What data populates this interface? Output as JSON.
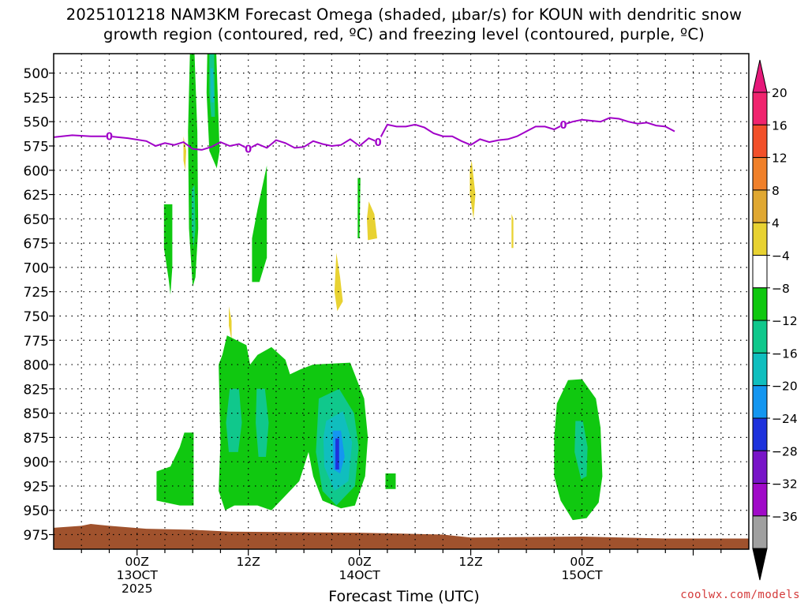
{
  "chart_data": {
    "type": "heatmap",
    "title_line1": "2025101218 NAM3KM Forecast Omega (shaded, μbar/s) for KOUN with dendritic snow",
    "title_line2": "growth region (contoured, red, ºC) and freezing level (contoured, purple, ºC)",
    "xlabel": "Forecast Time (UTC)",
    "x_range_hours": [
      -9,
      66
    ],
    "x_ticks": [
      {
        "hour": 0,
        "lines": [
          "00Z",
          "13OCT",
          "2025"
        ]
      },
      {
        "hour": 12,
        "lines": [
          "12Z"
        ]
      },
      {
        "hour": 24,
        "lines": [
          "00Z",
          "14OCT"
        ]
      },
      {
        "hour": 36,
        "lines": [
          "12Z"
        ]
      },
      {
        "hour": 48,
        "lines": [
          "00Z",
          "15OCT"
        ]
      }
    ],
    "y_ticks": [
      500,
      525,
      550,
      575,
      600,
      625,
      650,
      675,
      700,
      725,
      750,
      775,
      800,
      825,
      850,
      875,
      900,
      925,
      950,
      975
    ],
    "y_range_hpa": [
      480,
      990
    ],
    "colorbar": {
      "labels": [
        "20",
        "16",
        "12",
        "8",
        "4",
        "−4",
        "−8",
        "−12",
        "−16",
        "−20",
        "−24",
        "−28",
        "−32",
        "−36"
      ],
      "colors": [
        "#f0246e",
        "#f2502a",
        "#f0802a",
        "#e0a832",
        "#e8d232",
        "#ffffff",
        "#10c810",
        "#10c88c",
        "#10bebe",
        "#1496f0",
        "#1e32dc",
        "#7814c8",
        "#a00ac8",
        "#a0a0a0"
      ],
      "top_arrow_color": "#e6197a",
      "bottom_arrow_color": "#000000"
    },
    "freezing_level_color": "#a000c8",
    "freezing_level_label": "0",
    "freezing_level_hpa": [
      [
        -9,
        566
      ],
      [
        -7,
        564
      ],
      [
        -5,
        565
      ],
      [
        -3,
        565
      ],
      [
        -1,
        567
      ],
      [
        1,
        570
      ],
      [
        2,
        575
      ],
      [
        3,
        572
      ],
      [
        4,
        574
      ],
      [
        5,
        571
      ],
      [
        6,
        578
      ],
      [
        7,
        579
      ],
      [
        8,
        576
      ],
      [
        9,
        571
      ],
      [
        10,
        575
      ],
      [
        11,
        573
      ],
      [
        12,
        578
      ],
      [
        13,
        573
      ],
      [
        14,
        577
      ],
      [
        15,
        569
      ],
      [
        16,
        572
      ],
      [
        17,
        577
      ],
      [
        18,
        576
      ],
      [
        19,
        570
      ],
      [
        20,
        573
      ],
      [
        21,
        575
      ],
      [
        22,
        574
      ],
      [
        23,
        568
      ],
      [
        24,
        575
      ],
      [
        25,
        567
      ],
      [
        26,
        571
      ],
      [
        27,
        553
      ],
      [
        28,
        555
      ],
      [
        29,
        555
      ],
      [
        30,
        553
      ],
      [
        31,
        556
      ],
      [
        32,
        562
      ],
      [
        33,
        565
      ],
      [
        34,
        565
      ],
      [
        35,
        570
      ],
      [
        36,
        574
      ],
      [
        37,
        568
      ],
      [
        38,
        571
      ],
      [
        39,
        569
      ],
      [
        40,
        568
      ],
      [
        41,
        565
      ],
      [
        42,
        560
      ],
      [
        43,
        555
      ],
      [
        44,
        555
      ],
      [
        45,
        558
      ],
      [
        46,
        553
      ],
      [
        47,
        550
      ],
      [
        48,
        548
      ],
      [
        49,
        549
      ],
      [
        50,
        550
      ],
      [
        51,
        546
      ],
      [
        52,
        547
      ],
      [
        53,
        550
      ],
      [
        54,
        552
      ],
      [
        55,
        551
      ],
      [
        56,
        554
      ],
      [
        57,
        555
      ],
      [
        58,
        560
      ]
    ],
    "freezing_level_label_hours": [
      -3,
      12,
      26,
      46
    ],
    "terrain_color": "#a0522d",
    "terrain_top_hpa": [
      [
        -9,
        968
      ],
      [
        -6,
        966
      ],
      [
        -5,
        964
      ],
      [
        -3,
        966
      ],
      [
        1,
        969
      ],
      [
        6,
        970
      ],
      [
        10,
        972
      ],
      [
        24,
        973
      ],
      [
        33,
        975
      ],
      [
        36,
        978
      ],
      [
        48,
        977
      ],
      [
        57,
        979
      ],
      [
        66,
        979
      ]
    ],
    "omega_regions": [
      {
        "value": -6,
        "color": "#10c810",
        "pts": [
          [
            5.7,
            480
          ],
          [
            6.2,
            480
          ],
          [
            6.5,
            560
          ],
          [
            6.6,
            660
          ],
          [
            6.3,
            710
          ],
          [
            6.0,
            720
          ],
          [
            5.6,
            660
          ],
          [
            5.5,
            560
          ]
        ]
      },
      {
        "value": -10,
        "color": "#10c88c",
        "pts": [
          [
            5.9,
            620
          ],
          [
            6.2,
            615
          ],
          [
            6.3,
            660
          ],
          [
            6.1,
            680
          ],
          [
            5.9,
            660
          ]
        ]
      },
      {
        "value": -6,
        "color": "#10c810",
        "pts": [
          [
            7.6,
            467
          ],
          [
            8.5,
            467
          ],
          [
            8.9,
            580
          ],
          [
            8.6,
            598
          ],
          [
            7.8,
            580
          ],
          [
            7.5,
            520
          ]
        ]
      },
      {
        "value": -10,
        "color": "#10c88c",
        "pts": [
          [
            7.8,
            470
          ],
          [
            8.3,
            470
          ],
          [
            8.4,
            545
          ],
          [
            8.0,
            545
          ],
          [
            7.8,
            520
          ]
        ]
      },
      {
        "value": -14,
        "color": "#10bebe",
        "pts": [
          [
            7.9,
            495
          ],
          [
            8.2,
            495
          ],
          [
            8.3,
            530
          ],
          [
            8.0,
            530
          ]
        ]
      },
      {
        "value": -6,
        "color": "#10c810",
        "pts": [
          [
            2.9,
            635
          ],
          [
            3.8,
            635
          ],
          [
            3.8,
            700
          ],
          [
            3.6,
            728
          ],
          [
            3.4,
            712
          ],
          [
            2.9,
            680
          ]
        ]
      },
      {
        "value": -6,
        "color": "#10c810",
        "pts": [
          [
            14.0,
            595
          ],
          [
            14.0,
            690
          ],
          [
            13.2,
            715
          ],
          [
            12.4,
            715
          ],
          [
            12.4,
            670
          ],
          [
            13.0,
            640
          ]
        ]
      },
      {
        "value": -6,
        "color": "#10c810",
        "pts": [
          [
            23.8,
            608
          ],
          [
            24.1,
            608
          ],
          [
            24.0,
            670
          ],
          [
            23.8,
            670
          ]
        ]
      },
      {
        "value": 6,
        "color": "#e8d232",
        "pts": [
          [
            25.0,
            632
          ],
          [
            25.6,
            645
          ],
          [
            25.9,
            670
          ],
          [
            24.9,
            672
          ],
          [
            24.8,
            650
          ]
        ]
      },
      {
        "value": 6,
        "color": "#e8d232",
        "pts": [
          [
            21.5,
            685
          ],
          [
            21.9,
            710
          ],
          [
            22.2,
            735
          ],
          [
            21.6,
            745
          ],
          [
            21.3,
            725
          ]
        ]
      },
      {
        "value": 6,
        "color": "#e8d232",
        "pts": [
          [
            36.1,
            590
          ],
          [
            36.5,
            625
          ],
          [
            36.3,
            650
          ],
          [
            35.9,
            625
          ],
          [
            35.9,
            600
          ]
        ]
      },
      {
        "value": 6,
        "color": "#e8d232",
        "pts": [
          [
            40.4,
            645
          ],
          [
            40.6,
            650
          ],
          [
            40.6,
            680
          ],
          [
            40.4,
            680
          ]
        ]
      },
      {
        "value": 6,
        "color": "#e8d232",
        "pts": [
          [
            5.0,
            565
          ],
          [
            5.3,
            580
          ],
          [
            5.2,
            600
          ],
          [
            5.0,
            590
          ]
        ]
      },
      {
        "value": 6,
        "color": "#e8d232",
        "pts": [
          [
            9.9,
            740
          ],
          [
            10.2,
            755
          ],
          [
            10.2,
            775
          ],
          [
            9.9,
            760
          ]
        ]
      },
      {
        "value": -6,
        "color": "#10c810",
        "pts": [
          [
            8.8,
            800
          ],
          [
            9.2,
            790
          ],
          [
            9.7,
            770
          ],
          [
            11.8,
            780
          ],
          [
            12.2,
            800
          ],
          [
            13.0,
            790
          ],
          [
            14.5,
            782
          ],
          [
            16.0,
            795
          ],
          [
            16.5,
            810
          ],
          [
            17.6,
            805
          ],
          [
            19.0,
            800
          ],
          [
            23.0,
            798
          ],
          [
            24.5,
            835
          ],
          [
            24.9,
            875
          ],
          [
            24.6,
            915
          ],
          [
            23.5,
            945
          ],
          [
            22.0,
            948
          ],
          [
            20.0,
            940
          ],
          [
            19.0,
            915
          ],
          [
            18.5,
            890
          ],
          [
            17.5,
            920
          ],
          [
            16.0,
            935
          ],
          [
            14.5,
            950
          ],
          [
            13.0,
            945
          ],
          [
            10.5,
            945
          ],
          [
            9.5,
            950
          ],
          [
            8.8,
            930
          ],
          [
            9.0,
            880
          ]
        ]
      },
      {
        "value": -10,
        "color": "#10c88c",
        "pts": [
          [
            10.0,
            825
          ],
          [
            11.0,
            825
          ],
          [
            11.3,
            860
          ],
          [
            10.9,
            890
          ],
          [
            9.9,
            890
          ],
          [
            9.6,
            860
          ]
        ]
      },
      {
        "value": -10,
        "color": "#10c88c",
        "pts": [
          [
            12.9,
            825
          ],
          [
            13.8,
            825
          ],
          [
            14.2,
            860
          ],
          [
            13.9,
            895
          ],
          [
            13.1,
            895
          ],
          [
            12.8,
            860
          ]
        ]
      },
      {
        "value": -10,
        "color": "#10c88c",
        "pts": [
          [
            19.6,
            835
          ],
          [
            21.8,
            825
          ],
          [
            23.4,
            850
          ],
          [
            23.9,
            885
          ],
          [
            23.5,
            925
          ],
          [
            21.5,
            945
          ],
          [
            20.0,
            930
          ],
          [
            19.3,
            890
          ]
        ]
      },
      {
        "value": -14,
        "color": "#10bebe",
        "pts": [
          [
            20.4,
            858
          ],
          [
            22.2,
            848
          ],
          [
            23.2,
            880
          ],
          [
            22.8,
            920
          ],
          [
            21.3,
            930
          ],
          [
            20.2,
            905
          ],
          [
            20.1,
            875
          ]
        ]
      },
      {
        "value": -18,
        "color": "#1496f0",
        "pts": [
          [
            21.1,
            868
          ],
          [
            22.0,
            868
          ],
          [
            22.4,
            895
          ],
          [
            21.9,
            912
          ],
          [
            21.2,
            908
          ]
        ]
      },
      {
        "value": -22,
        "color": "#1e32dc",
        "pts": [
          [
            21.4,
            876
          ],
          [
            21.8,
            876
          ],
          [
            21.8,
            908
          ],
          [
            21.4,
            908
          ]
        ]
      },
      {
        "value": -6,
        "color": "#10c810",
        "pts": [
          [
            2.1,
            910
          ],
          [
            3.6,
            905
          ],
          [
            4.6,
            885
          ],
          [
            5.1,
            870
          ],
          [
            6.1,
            870
          ],
          [
            6.1,
            945
          ],
          [
            4.6,
            945
          ],
          [
            2.1,
            940
          ]
        ]
      },
      {
        "value": -6,
        "color": "#10c810",
        "pts": [
          [
            26.8,
            912
          ],
          [
            27.9,
            912
          ],
          [
            27.9,
            928
          ],
          [
            26.8,
            928
          ]
        ]
      },
      {
        "value": -6,
        "color": "#10c810",
        "pts": [
          [
            45.3,
            840
          ],
          [
            46.5,
            816
          ],
          [
            48.0,
            815
          ],
          [
            49.5,
            835
          ],
          [
            50.0,
            865
          ],
          [
            50.2,
            915
          ],
          [
            49.8,
            942
          ],
          [
            48.5,
            958
          ],
          [
            47.0,
            960
          ],
          [
            45.7,
            940
          ],
          [
            45.0,
            915
          ],
          [
            45.0,
            875
          ]
        ]
      },
      {
        "value": -10,
        "color": "#10c88c",
        "pts": [
          [
            47.3,
            858
          ],
          [
            48.1,
            858
          ],
          [
            48.6,
            885
          ],
          [
            48.5,
            915
          ],
          [
            47.9,
            918
          ],
          [
            47.2,
            890
          ]
        ]
      }
    ]
  },
  "credit": "coolwx.com/models"
}
